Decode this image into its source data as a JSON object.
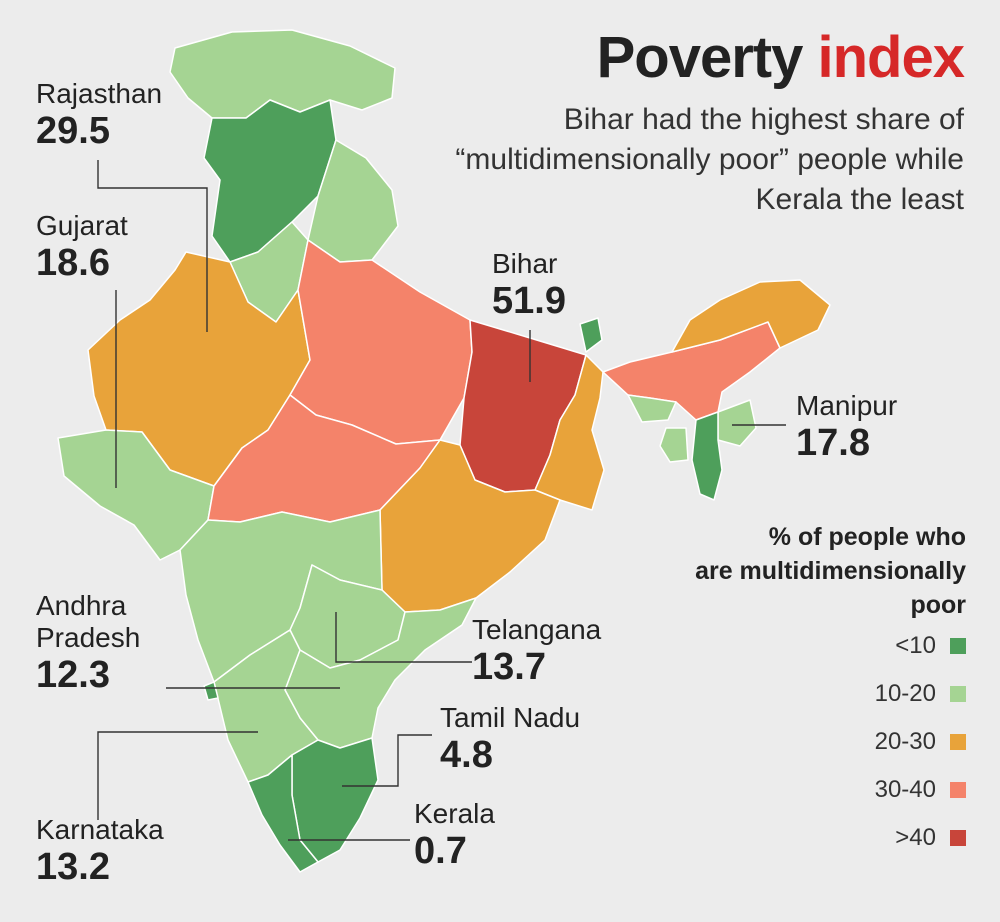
{
  "header": {
    "title_main": "Poverty",
    "title_accent": "index",
    "subtitle": "Bihar had the highest share of “multidimensionally poor” people while Kerala the least"
  },
  "colors": {
    "lt10": "#4e9f5b",
    "c10_20": "#a5d493",
    "c20_30": "#e8a33a",
    "c30_40": "#f4836a",
    "gt40": "#c8453a",
    "title_accent": "#d62828",
    "border": "#ffffff",
    "leader": "#333333"
  },
  "callouts": {
    "rajasthan": {
      "name": "Rajasthan",
      "value": "29.5"
    },
    "gujarat": {
      "name": "Gujarat",
      "value": "18.6"
    },
    "bihar": {
      "name": "Bihar",
      "value": "51.9"
    },
    "manipur": {
      "name": "Manipur",
      "value": "17.8"
    },
    "andhra": {
      "name_line1": "Andhra",
      "name_line2": "Pradesh",
      "value": "12.3"
    },
    "telangana": {
      "name": "Telangana",
      "value": "13.7"
    },
    "tamilnadu": {
      "name": "Tamil Nadu",
      "value": "4.8"
    },
    "kerala": {
      "name": "Kerala",
      "value": "0.7"
    },
    "karnataka": {
      "name": "Karnataka",
      "value": "13.2"
    }
  },
  "legend": {
    "title_line1": "% of people who",
    "title_line2": "are multidimensionally",
    "title_line3": "poor",
    "items": [
      {
        "label": "<10",
        "color": "#4e9f5b"
      },
      {
        "label": "10-20",
        "color": "#a5d493"
      },
      {
        "label": "20-30",
        "color": "#e8a33a"
      },
      {
        "label": "30-40",
        "color": "#f4836a"
      },
      {
        "label": ">40",
        "color": "#c8453a"
      }
    ]
  }
}
